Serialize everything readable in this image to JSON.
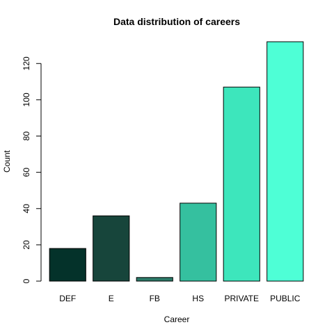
{
  "chart_data": {
    "type": "bar",
    "title": "Data distribution of careers",
    "xlabel": "Career",
    "ylabel": "Count",
    "categories": [
      "DEF",
      "E",
      "FB",
      "HS",
      "PRIVATE",
      "PUBLIC"
    ],
    "values": [
      18,
      36,
      2,
      43,
      107,
      132
    ],
    "colors": [
      "#04322a",
      "#17453b",
      "#2b7a68",
      "#35c09f",
      "#3de6bc",
      "#4effd6"
    ],
    "ylim": [
      0,
      132
    ],
    "yticks": [
      0,
      20,
      40,
      60,
      80,
      100,
      120
    ],
    "grid": false,
    "legend": "none"
  }
}
